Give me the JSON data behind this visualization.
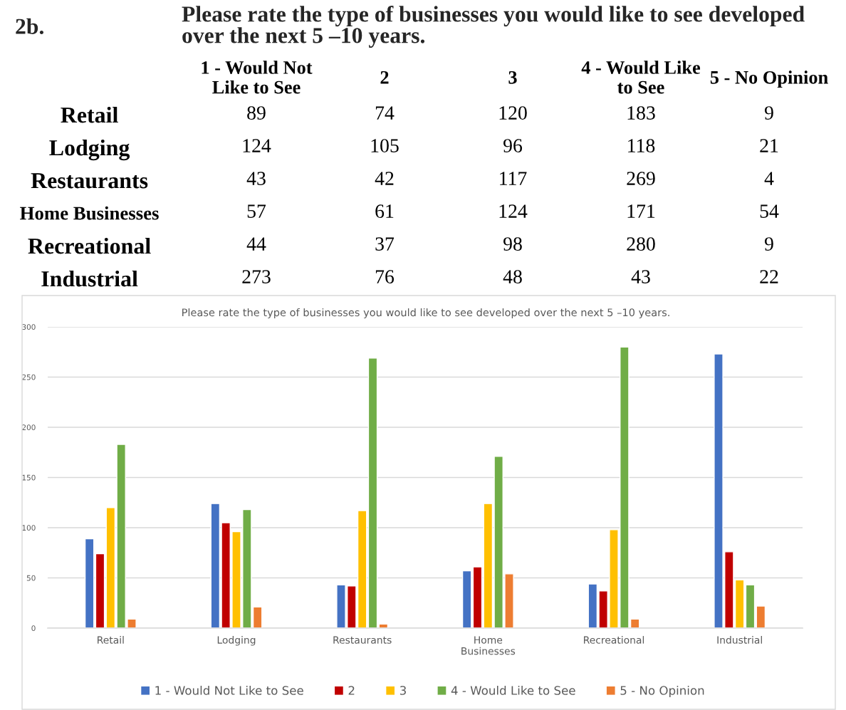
{
  "chart_data": [
    {
      "type": "heatmap",
      "title": "Please rate the type of businesses you would like to see developed over the next 5 –10 years.",
      "annotations": [
        "2b."
      ],
      "categories": [
        "1 - Would Not Like to See",
        "2",
        "3",
        "4 - Would Like to See",
        "5 - No Opinion"
      ],
      "y_categories": [
        "Retail",
        "Lodging",
        "Restaurants",
        "Home Businesses",
        "Recreational",
        "Industrial"
      ],
      "cells": [
        [
          89,
          74,
          120,
          183,
          9
        ],
        [
          124,
          105,
          96,
          118,
          21
        ],
        [
          43,
          42,
          117,
          269,
          4
        ],
        [
          57,
          61,
          124,
          171,
          54
        ],
        [
          44,
          37,
          98,
          280,
          9
        ],
        [
          273,
          76,
          48,
          43,
          22
        ]
      ],
      "data_labels": true
    },
    {
      "type": "bar",
      "title": "Please rate the type of businesses you would like to see developed over the next 5 –10 years.",
      "categories": [
        "Retail",
        "Lodging",
        "Restaurants",
        "Home Businesses",
        "Recreational",
        "Industrial"
      ],
      "series": [
        {
          "name": "1 - Would Not Like to See",
          "color": "#4472c4",
          "values": [
            89,
            124,
            43,
            57,
            44,
            273
          ]
        },
        {
          "name": "2",
          "color": "#c00000",
          "values": [
            74,
            105,
            42,
            61,
            37,
            76
          ]
        },
        {
          "name": "3",
          "color": "#ffc000",
          "values": [
            120,
            96,
            117,
            124,
            98,
            48
          ]
        },
        {
          "name": "4 - Would Like to See",
          "color": "#70ad47",
          "values": [
            183,
            118,
            269,
            171,
            280,
            43
          ]
        },
        {
          "name": "5 - No Opinion",
          "color": "#ed7d31",
          "values": [
            9,
            21,
            4,
            54,
            9,
            22
          ]
        }
      ],
      "ylim": [
        0,
        300
      ],
      "yticks": [
        0,
        50,
        100,
        150,
        200,
        250,
        300
      ],
      "grid": "y",
      "legend": "bottom"
    }
  ]
}
